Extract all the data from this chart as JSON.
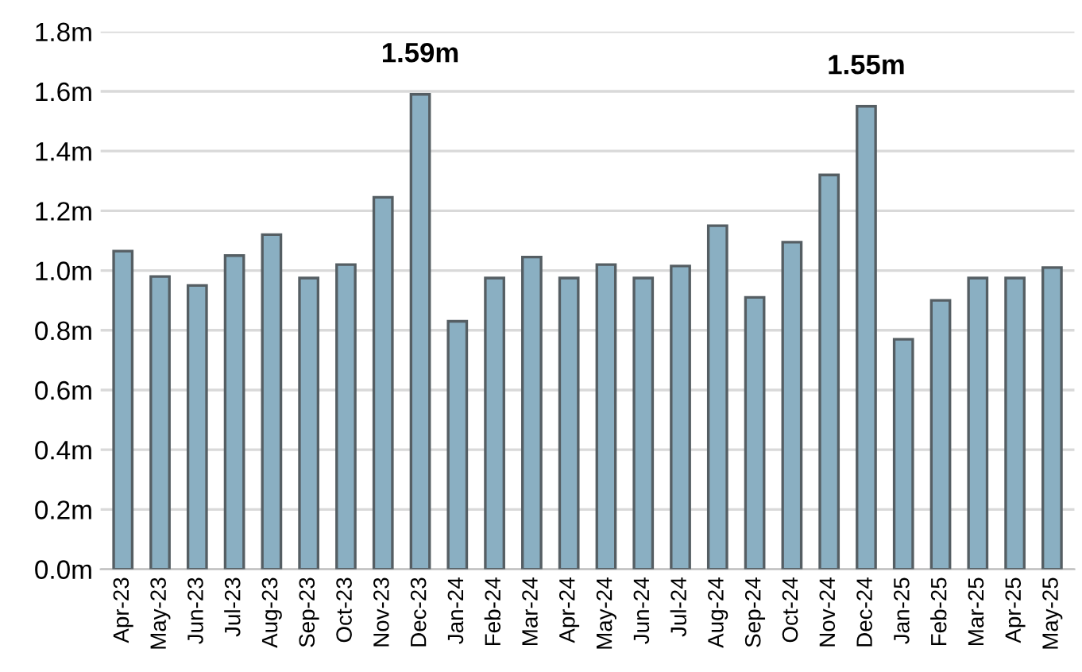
{
  "chart_data": {
    "type": "bar",
    "categories": [
      "Apr-23",
      "May-23",
      "Jun-23",
      "Jul-23",
      "Aug-23",
      "Sep-23",
      "Oct-23",
      "Nov-23",
      "Dec-23",
      "Jan-24",
      "Feb-24",
      "Mar-24",
      "Apr-24",
      "May-24",
      "Jun-24",
      "Jul-24",
      "Aug-24",
      "Sep-24",
      "Oct-24",
      "Nov-24",
      "Dec-24",
      "Jan-25",
      "Feb-25",
      "Mar-25",
      "Apr-25",
      "May-25"
    ],
    "values": [
      1.065,
      0.98,
      0.95,
      1.05,
      1.12,
      0.975,
      1.02,
      1.245,
      1.59,
      0.83,
      0.975,
      1.045,
      0.975,
      1.02,
      0.975,
      1.015,
      1.15,
      0.91,
      1.095,
      1.32,
      1.55,
      0.77,
      0.9,
      0.975,
      0.975,
      1.01
    ],
    "value_labels": [
      null,
      null,
      null,
      null,
      null,
      null,
      null,
      null,
      "1.59m",
      null,
      null,
      null,
      null,
      null,
      null,
      null,
      null,
      null,
      null,
      null,
      "1.55m",
      null,
      null,
      null,
      null,
      null
    ],
    "color": "#8aafc2",
    "ylim": [
      0,
      1.8
    ],
    "yticks": [
      {
        "value": 0,
        "label": "0.0m"
      },
      {
        "value": 0.2,
        "label": "0.2m"
      },
      {
        "value": 0.4,
        "label": "0.4m"
      },
      {
        "value": 0.6,
        "label": "0.6m"
      },
      {
        "value": 0.8,
        "label": "0.8m"
      },
      {
        "value": 1.0,
        "label": "1.0m"
      },
      {
        "value": 1.2,
        "label": "1.2m"
      },
      {
        "value": 1.4,
        "label": "1.4m"
      },
      {
        "value": 1.6,
        "label": "1.6m"
      },
      {
        "value": 1.8,
        "label": "1.8m"
      }
    ],
    "grid": "y"
  }
}
